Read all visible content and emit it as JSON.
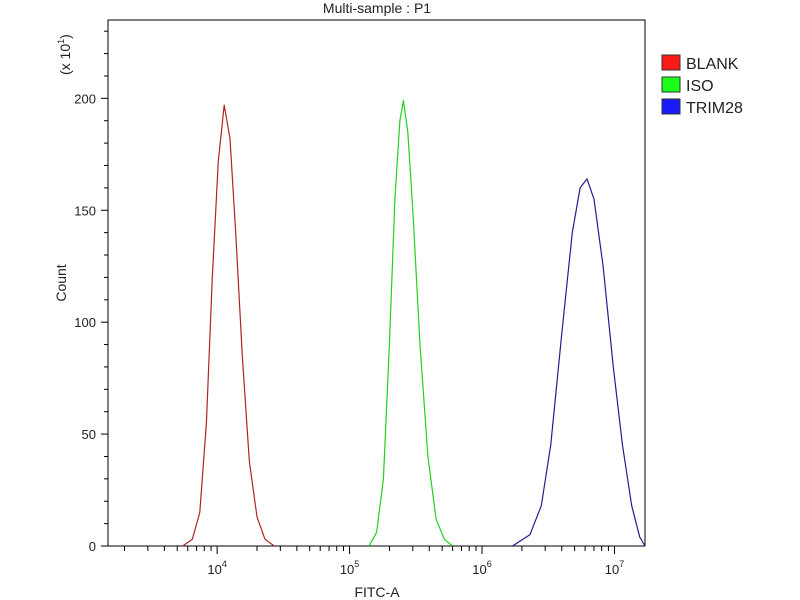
{
  "chart_data": {
    "type": "line",
    "title": "Multi-sample : P1",
    "xlabel": "FITC-A",
    "ylabel": "Count",
    "yscale_note": {
      "prefix": "(x 10",
      "exp": "1",
      "suffix": ")"
    },
    "xscale": "log",
    "xlim": [
      1500,
      17000000
    ],
    "ylim": [
      0,
      235
    ],
    "y_ticks": [
      0,
      50,
      100,
      150,
      200
    ],
    "x_ticks": [
      {
        "value": 10000,
        "base": "10",
        "exp": "4"
      },
      {
        "value": 100000,
        "base": "10",
        "exp": "5"
      },
      {
        "value": 1000000,
        "base": "10",
        "exp": "6"
      },
      {
        "value": 10000000,
        "base": "10",
        "exp": "7"
      }
    ],
    "legend_position": "top-right",
    "series": [
      {
        "name": "BLANK",
        "color": "#b22222",
        "legend_color": "#ff1a1a",
        "points": [
          [
            5500,
            0
          ],
          [
            6500,
            3
          ],
          [
            7400,
            15
          ],
          [
            8300,
            55
          ],
          [
            9200,
            120
          ],
          [
            10200,
            172
          ],
          [
            11300,
            197
          ],
          [
            12500,
            182
          ],
          [
            13800,
            140
          ],
          [
            15500,
            85
          ],
          [
            17500,
            38
          ],
          [
            20000,
            13
          ],
          [
            23000,
            3
          ],
          [
            27000,
            0
          ]
        ]
      },
      {
        "name": "ISO",
        "color": "#1ed21e",
        "legend_color": "#1aff1a",
        "points": [
          [
            140000,
            0
          ],
          [
            160000,
            6
          ],
          [
            180000,
            30
          ],
          [
            200000,
            90
          ],
          [
            220000,
            155
          ],
          [
            240000,
            190
          ],
          [
            255000,
            199
          ],
          [
            275000,
            185
          ],
          [
            300000,
            150
          ],
          [
            340000,
            90
          ],
          [
            390000,
            40
          ],
          [
            450000,
            12
          ],
          [
            520000,
            3
          ],
          [
            600000,
            0
          ]
        ]
      },
      {
        "name": "TRIM28",
        "color": "#1f1f8c",
        "legend_color": "#1a1aff",
        "points": [
          [
            1700000,
            0
          ],
          [
            2300000,
            5
          ],
          [
            2800000,
            18
          ],
          [
            3300000,
            45
          ],
          [
            4000000,
            95
          ],
          [
            4800000,
            140
          ],
          [
            5500000,
            160
          ],
          [
            6200000,
            164
          ],
          [
            7000000,
            155
          ],
          [
            8200000,
            125
          ],
          [
            9800000,
            80
          ],
          [
            11500000,
            45
          ],
          [
            13500000,
            18
          ],
          [
            15500000,
            4
          ],
          [
            17000000,
            0
          ]
        ]
      }
    ]
  }
}
